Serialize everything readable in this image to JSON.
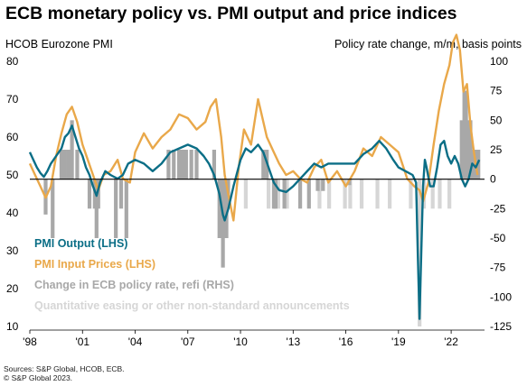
{
  "title": "ECB monetary policy vs. PMI output and price indices",
  "left_axis_label": "HCOB Eurozone PMI",
  "right_axis_label": "Policy rate change, m/m, basis points",
  "source_lines": [
    "Sources: S&P Global, HCOB, ECB.",
    "© S&P Global 2023."
  ],
  "colors": {
    "pmi_output": "#0b6e86",
    "pmi_input_prices": "#e9a84a",
    "policy_rate_change": "#a8a8a8",
    "qe_announcements": "#d6d6d6",
    "zero_line": "#000000"
  },
  "legend": [
    {
      "label": "PMI  Output (LHS)",
      "color": "#0b6e86"
    },
    {
      "label": "PMI Input Prices (LHS)",
      "color": "#e9a84a"
    },
    {
      "label": "Change in ECB policy rate, refi (RHS)",
      "color": "#a8a8a8"
    },
    {
      "label": "Quantitative easing or other non-standard announcements",
      "color": "#d6d6d6"
    }
  ],
  "chart_data": {
    "type": "line",
    "title": "ECB monetary policy vs. PMI output and price indices",
    "x_ticks": [
      "'98",
      "'01",
      "'04",
      "'07",
      "'10",
      "'13",
      "'16",
      "'19",
      "'22"
    ],
    "x_tick_years": [
      1998,
      2001,
      2004,
      2007,
      2010,
      2013,
      2016,
      2019,
      2022
    ],
    "xlim": [
      1998,
      2023.9
    ],
    "left_axis": {
      "label": "HCOB Eurozone PMI",
      "ylim": [
        10,
        80
      ],
      "ticks": [
        10,
        20,
        30,
        40,
        50,
        60,
        70,
        80
      ]
    },
    "right_axis": {
      "label": "Policy rate change, m/m, basis points",
      "ylim": [
        -125,
        100
      ],
      "ticks": [
        -125,
        -100,
        -75,
        -50,
        -25,
        0,
        25,
        50,
        75,
        100
      ]
    },
    "series": [
      {
        "name": "PMI  Output (LHS)",
        "axis": "left",
        "x": [
          1998.0,
          1998.2,
          1998.4,
          1998.6,
          1998.8,
          1999.0,
          1999.2,
          1999.5,
          1999.8,
          2000.0,
          2000.2,
          2000.4,
          2000.6,
          2000.8,
          2001.0,
          2001.2,
          2001.4,
          2001.6,
          2001.8,
          2002.0,
          2002.3,
          2002.6,
          2003.0,
          2003.3,
          2003.6,
          2004.0,
          2004.5,
          2005.0,
          2005.5,
          2006.0,
          2006.5,
          2007.0,
          2007.5,
          2007.9,
          2008.2,
          2008.5,
          2008.8,
          2009.0,
          2009.1,
          2009.3,
          2009.6,
          2010.0,
          2010.3,
          2010.6,
          2011.0,
          2011.3,
          2011.6,
          2011.9,
          2012.2,
          2012.6,
          2013.0,
          2013.4,
          2013.8,
          2014.2,
          2014.6,
          2015.0,
          2015.5,
          2016.0,
          2016.5,
          2017.0,
          2017.5,
          2017.9,
          2018.3,
          2018.7,
          2019.0,
          2019.4,
          2019.8,
          2020.0,
          2020.1,
          2020.2,
          2020.3,
          2020.4,
          2020.5,
          2020.6,
          2020.8,
          2021.0,
          2021.2,
          2021.4,
          2021.6,
          2021.8,
          2022.0,
          2022.2,
          2022.4,
          2022.6,
          2022.8,
          2023.0,
          2023.2,
          2023.4,
          2023.6
        ],
        "values": [
          56,
          54,
          52,
          50.5,
          49.5,
          51,
          53,
          55,
          57,
          60,
          61,
          63,
          60,
          57,
          55,
          52,
          50,
          47,
          44.5,
          48,
          51,
          50,
          49,
          50,
          53,
          54,
          53,
          51,
          53,
          56,
          57,
          58,
          57,
          55,
          53,
          50,
          45,
          39.5,
          38,
          41,
          47,
          54,
          57,
          56,
          58,
          56,
          52,
          48,
          46,
          45.5,
          47,
          49,
          51,
          53,
          52,
          53,
          53,
          53,
          53,
          55.5,
          57,
          59,
          57,
          54,
          52,
          51,
          50,
          48,
          29,
          12,
          30,
          47,
          54,
          52,
          47,
          47,
          52,
          58,
          59,
          55,
          53,
          55,
          53,
          49,
          47,
          49,
          53,
          52,
          54
        ]
      },
      {
        "name": "PMI Input Prices (LHS)",
        "axis": "left",
        "x": [
          1998.0,
          1998.3,
          1998.6,
          1998.9,
          1999.2,
          1999.5,
          1999.8,
          2000.1,
          2000.4,
          2000.7,
          2001.0,
          2001.3,
          2001.6,
          2001.9,
          2002.2,
          2002.6,
          2003.0,
          2003.3,
          2003.7,
          2004.0,
          2004.5,
          2005.0,
          2005.5,
          2006.0,
          2006.5,
          2007.0,
          2007.5,
          2008.0,
          2008.3,
          2008.6,
          2008.9,
          2009.1,
          2009.3,
          2009.6,
          2009.9,
          2010.2,
          2010.6,
          2011.0,
          2011.2,
          2011.5,
          2011.9,
          2012.2,
          2012.6,
          2013.0,
          2013.4,
          2013.8,
          2014.2,
          2014.6,
          2015.0,
          2015.5,
          2016.0,
          2016.5,
          2017.0,
          2017.5,
          2018.0,
          2018.5,
          2019.0,
          2019.5,
          2019.9,
          2020.2,
          2020.4,
          2020.7,
          2021.0,
          2021.3,
          2021.6,
          2021.9,
          2022.1,
          2022.3,
          2022.5,
          2022.7,
          2022.9,
          2023.1,
          2023.3,
          2023.5
        ],
        "values": [
          53,
          50,
          47,
          44,
          47,
          55,
          61,
          66,
          68,
          64,
          58,
          54,
          50,
          46,
          50,
          51,
          54,
          49,
          48,
          56,
          61,
          57,
          60,
          62,
          66,
          65,
          62,
          64,
          68,
          70,
          60,
          50,
          45,
          38,
          52,
          62,
          58,
          70,
          66,
          60,
          56,
          53,
          50,
          51,
          49,
          48,
          52,
          54,
          48,
          51,
          47,
          51,
          57,
          55,
          60,
          58,
          56,
          49,
          47,
          46,
          43,
          48,
          58,
          67,
          74,
          79,
          85,
          87,
          83,
          72,
          74,
          63,
          56,
          50
        ]
      }
    ],
    "policy_rate_changes_bp": [
      {
        "year": 1998.9,
        "value": -30
      },
      {
        "year": 1999.3,
        "value": -50
      },
      {
        "year": 1999.8,
        "value": 25
      },
      {
        "year": 2000.0,
        "value": 25
      },
      {
        "year": 2000.2,
        "value": 25
      },
      {
        "year": 2000.4,
        "value": 50
      },
      {
        "year": 2000.7,
        "value": 25
      },
      {
        "year": 2001.4,
        "value": -25
      },
      {
        "year": 2001.7,
        "value": -25
      },
      {
        "year": 2001.8,
        "value": -50
      },
      {
        "year": 2001.9,
        "value": -25
      },
      {
        "year": 2002.9,
        "value": -50
      },
      {
        "year": 2003.2,
        "value": -25
      },
      {
        "year": 2003.5,
        "value": -50
      },
      {
        "year": 2005.9,
        "value": 25
      },
      {
        "year": 2006.2,
        "value": 25
      },
      {
        "year": 2006.5,
        "value": 25
      },
      {
        "year": 2006.7,
        "value": 25
      },
      {
        "year": 2006.9,
        "value": 25
      },
      {
        "year": 2007.2,
        "value": 25
      },
      {
        "year": 2007.5,
        "value": 25
      },
      {
        "year": 2008.5,
        "value": 25
      },
      {
        "year": 2008.8,
        "value": -50
      },
      {
        "year": 2008.9,
        "value": -50
      },
      {
        "year": 2009.0,
        "value": -75
      },
      {
        "year": 2009.1,
        "value": -50
      },
      {
        "year": 2009.2,
        "value": -50
      },
      {
        "year": 2009.3,
        "value": -25
      },
      {
        "year": 2011.3,
        "value": 25
      },
      {
        "year": 2011.5,
        "value": 25
      },
      {
        "year": 2011.9,
        "value": -25
      },
      {
        "year": 2012.0,
        "value": -25
      },
      {
        "year": 2012.5,
        "value": -25
      },
      {
        "year": 2013.4,
        "value": -25
      },
      {
        "year": 2013.9,
        "value": -25
      },
      {
        "year": 2014.4,
        "value": -10
      },
      {
        "year": 2014.7,
        "value": -10
      },
      {
        "year": 2016.2,
        "value": -5
      },
      {
        "year": 2022.6,
        "value": 50
      },
      {
        "year": 2022.75,
        "value": 75
      },
      {
        "year": 2022.85,
        "value": 75
      },
      {
        "year": 2023.0,
        "value": 50
      },
      {
        "year": 2023.1,
        "value": 50
      },
      {
        "year": 2023.25,
        "value": 25
      },
      {
        "year": 2023.4,
        "value": 25
      },
      {
        "year": 2023.55,
        "value": 25
      }
    ],
    "non_standard_announcements_bp_scale": [
      {
        "year": 2010.3,
        "value": -25
      },
      {
        "year": 2011.6,
        "value": -25
      },
      {
        "year": 2011.95,
        "value": -25
      },
      {
        "year": 2012.15,
        "value": -25
      },
      {
        "year": 2012.65,
        "value": -25
      },
      {
        "year": 2014.5,
        "value": -25
      },
      {
        "year": 2015.05,
        "value": -25
      },
      {
        "year": 2015.95,
        "value": -25
      },
      {
        "year": 2016.25,
        "value": -25
      },
      {
        "year": 2016.9,
        "value": -25
      },
      {
        "year": 2017.8,
        "value": -25
      },
      {
        "year": 2018.5,
        "value": -25
      },
      {
        "year": 2019.7,
        "value": -25
      },
      {
        "year": 2020.2,
        "value": -125
      },
      {
        "year": 2020.45,
        "value": -25
      },
      {
        "year": 2020.95,
        "value": -25
      },
      {
        "year": 2021.35,
        "value": -25
      },
      {
        "year": 2021.9,
        "value": -25
      }
    ]
  }
}
